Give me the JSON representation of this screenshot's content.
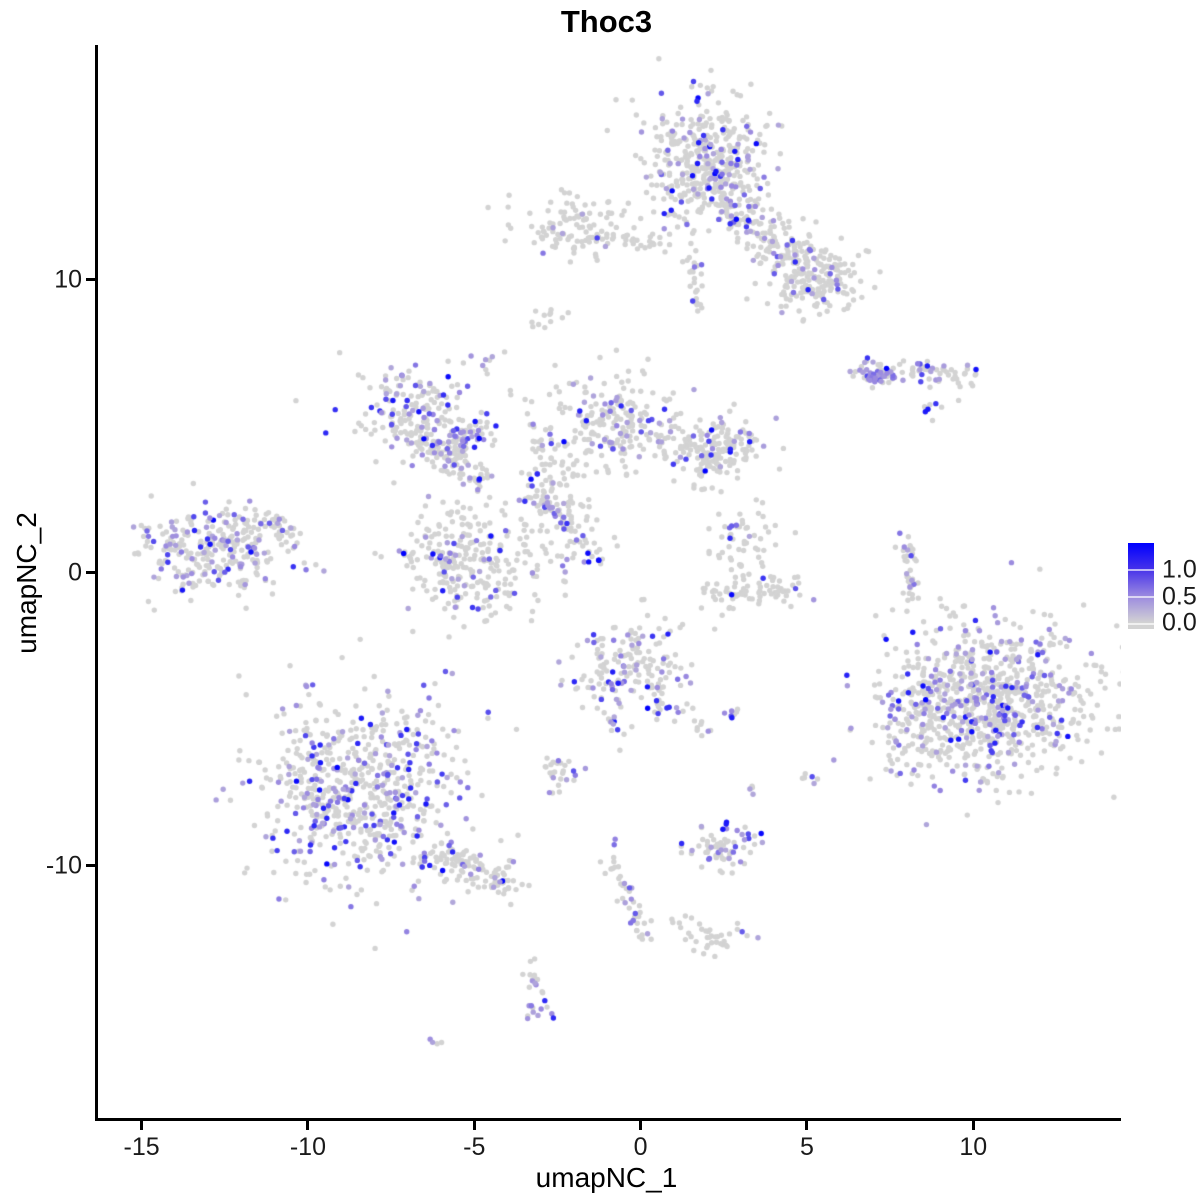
{
  "title": "Thoc3",
  "axes": {
    "x": {
      "label": "umapNC_1",
      "ticks": [
        -15,
        -10,
        -5,
        0,
        5,
        10
      ],
      "range": [
        -16.4,
        14.35
      ]
    },
    "y": {
      "label": "umapNC_2",
      "ticks": [
        -10,
        0,
        10
      ],
      "range": [
        -18.6,
        18.0
      ]
    }
  },
  "legend": {
    "labels": [
      "1.0",
      "0.5",
      "0.0"
    ],
    "tick_values": [
      1.0,
      0.5,
      0.0
    ],
    "bar_max_value": 1.5,
    "bar_min_value": -0.08,
    "low_color": "#d3d3d3",
    "mid_color": "#9b8ae0",
    "high_color": "#0000ff"
  },
  "chart_data": {
    "type": "scatter",
    "title": "Thoc3",
    "xlabel": "umapNC_1",
    "ylabel": "umapNC_2",
    "xlim": [
      -16.4,
      14.35
    ],
    "ylim": [
      -18.6,
      18.0
    ],
    "grid": false,
    "legend_position": "right",
    "point_radius": 2.7,
    "seed": 42,
    "color_low": "#d3d3d3",
    "color_mid": "#9b8ae0",
    "color_high": "#0000ff",
    "expression_default": {
      "emin": 0.3,
      "emax": 1.0,
      "skew": 1.8
    },
    "clusters": [
      {
        "name": "top-main",
        "shape": "blob",
        "cx": 1.8,
        "cy": 14.05,
        "sx": 0.9,
        "sy": 1.05,
        "n": 430,
        "frac": 0.2
      },
      {
        "name": "top-arm",
        "shape": "line",
        "x1": 2.3,
        "y1": 12.8,
        "x2": 5.6,
        "y2": 9.6,
        "w": 0.45,
        "n": 230,
        "frac": 0.16
      },
      {
        "name": "top-right-lobe",
        "shape": "blob",
        "cx": 5.4,
        "cy": 10.0,
        "sx": 0.75,
        "sy": 0.6,
        "n": 130,
        "frac": 0.14
      },
      {
        "name": "top-chain",
        "shape": "line",
        "x1": 1.3,
        "y1": 11.3,
        "x2": 1.7,
        "y2": 8.9,
        "w": 0.12,
        "n": 26,
        "frac": 0.15
      },
      {
        "name": "topleft-small",
        "shape": "blob",
        "cx": -2.0,
        "cy": 11.7,
        "sx": 0.85,
        "sy": 0.5,
        "n": 110,
        "frac": 0.07
      },
      {
        "name": "topleft-bridge",
        "shape": "line",
        "x1": -0.6,
        "y1": 11.4,
        "x2": 0.6,
        "y2": 11.2,
        "w": 0.2,
        "n": 24,
        "frac": 0.04
      },
      {
        "name": "tiny-comma",
        "shape": "blob",
        "cx": -2.85,
        "cy": 8.7,
        "sx": 0.28,
        "sy": 0.22,
        "n": 12,
        "frac": 0
      },
      {
        "name": "tiny-spot",
        "shape": "blob",
        "cx": -4.6,
        "cy": 7.4,
        "sx": 0.25,
        "sy": 0.3,
        "n": 9,
        "frac": 0.33
      },
      {
        "name": "midleft-top",
        "shape": "blob",
        "cx": -7.0,
        "cy": 5.6,
        "sx": 0.95,
        "sy": 0.75,
        "n": 170,
        "frac": 0.3
      },
      {
        "name": "midleft-branch",
        "shape": "line",
        "x1": -6.8,
        "y1": 4.7,
        "x2": -5.0,
        "y2": 3.2,
        "w": 0.3,
        "n": 90,
        "frac": 0.25
      },
      {
        "name": "mid-band",
        "shape": "line",
        "x1": -6.2,
        "y1": 4.0,
        "x2": -4.7,
        "y2": 4.9,
        "w": 0.28,
        "n": 70,
        "frac": 0.3
      },
      {
        "name": "round-blob",
        "shape": "blob",
        "cx": -5.3,
        "cy": 0.4,
        "sx": 1.05,
        "sy": 0.95,
        "n": 270,
        "frac": 0.18
      },
      {
        "name": "stem",
        "shape": "blob",
        "cx": -2.9,
        "cy": 3.0,
        "sx": 0.5,
        "sy": 1.0,
        "n": 90,
        "frac": 0.13
      },
      {
        "name": "fan",
        "shape": "blob",
        "cx": -0.9,
        "cy": 5.0,
        "sx": 0.95,
        "sy": 0.85,
        "n": 210,
        "frac": 0.14
      },
      {
        "name": "right-wing",
        "shape": "blob",
        "cx": 1.9,
        "cy": 4.3,
        "sx": 0.85,
        "sy": 0.55,
        "n": 150,
        "frac": 0.15
      },
      {
        "name": "wing-arm",
        "shape": "line",
        "x1": 1.6,
        "y1": 3.4,
        "x2": 3.1,
        "y2": 4.6,
        "w": 0.25,
        "n": 45,
        "frac": 0.22
      },
      {
        "name": "streak",
        "shape": "line",
        "x1": -3.0,
        "y1": 2.5,
        "x2": -1.3,
        "y2": 0.35,
        "w": 0.12,
        "n": 40,
        "frac": 0.45
      },
      {
        "name": "streak-end-dark",
        "shape": "blob",
        "cx": -1.35,
        "cy": 0.45,
        "sx": 0.06,
        "sy": 0.06,
        "n": 2,
        "frac": 1.0,
        "emin": 0.92,
        "emax": 1.0
      },
      {
        "name": "scatter-mid",
        "shape": "blob",
        "cx": -2.2,
        "cy": 1.3,
        "sx": 0.8,
        "sy": 0.8,
        "n": 40,
        "frac": 0.1
      },
      {
        "name": "far-left",
        "shape": "blob",
        "cx": -12.9,
        "cy": 0.9,
        "sx": 1.15,
        "sy": 0.8,
        "n": 290,
        "frac": 0.27
      },
      {
        "name": "farleft-tail",
        "shape": "line",
        "x1": -11.5,
        "y1": 1.7,
        "x2": -10.4,
        "y2": 1.4,
        "w": 0.25,
        "n": 30,
        "frac": 0.1
      },
      {
        "name": "sliver",
        "shape": "line",
        "x1": 7.95,
        "y1": 1.3,
        "x2": 8.05,
        "y2": -1.2,
        "w": 0.12,
        "n": 40,
        "frac": 0.18
      },
      {
        "name": "crescent-top",
        "shape": "blob",
        "cx": 2.9,
        "cy": 1.2,
        "sx": 0.5,
        "sy": 0.65,
        "n": 55,
        "frac": 0.1
      },
      {
        "name": "crescent-bottom",
        "shape": "line",
        "x1": 1.9,
        "y1": -0.8,
        "x2": 4.6,
        "y2": -0.5,
        "w": 0.3,
        "n": 75,
        "frac": 0.07
      },
      {
        "name": "center-bottom",
        "shape": "blob",
        "cx": -0.3,
        "cy": -3.3,
        "sx": 0.85,
        "sy": 0.75,
        "n": 170,
        "frac": 0.28
      },
      {
        "name": "cb-tail",
        "shape": "line",
        "x1": 0.4,
        "y1": -4.6,
        "x2": 1.9,
        "y2": -5.3,
        "w": 0.2,
        "n": 22,
        "frac": 0.1
      },
      {
        "name": "cb-chain",
        "shape": "line",
        "x1": -1.0,
        "y1": -4.7,
        "x2": -0.7,
        "y2": -6.0,
        "w": 0.1,
        "n": 10,
        "frac": 0.4
      },
      {
        "name": "cb-pair",
        "shape": "blob",
        "cx": 2.65,
        "cy": -4.8,
        "sx": 0.15,
        "sy": 0.12,
        "n": 7,
        "frac": 0.5
      },
      {
        "name": "right-big",
        "shape": "blob",
        "cx": 10.4,
        "cy": -4.4,
        "sx": 1.55,
        "sy": 1.35,
        "n": 820,
        "frac": 0.24
      },
      {
        "name": "right-fringe",
        "shape": "blob",
        "cx": 8.3,
        "cy": -5.1,
        "sx": 0.55,
        "sy": 1.1,
        "n": 90,
        "frac": 0.25
      },
      {
        "name": "botleft-main",
        "shape": "blob",
        "cx": -8.5,
        "cy": -7.4,
        "sx": 1.5,
        "sy": 1.55,
        "n": 680,
        "frac": 0.28
      },
      {
        "name": "botleft-tail",
        "shape": "line",
        "x1": -6.4,
        "y1": -9.6,
        "x2": -3.9,
        "y2": -10.6,
        "w": 0.3,
        "n": 120,
        "frac": 0.18
      },
      {
        "name": "small-island",
        "shape": "blob",
        "cx": -2.5,
        "cy": -6.8,
        "sx": 0.32,
        "sy": 0.3,
        "n": 28,
        "frac": 0.3
      },
      {
        "name": "bottom-cluster",
        "shape": "blob",
        "cx": 2.4,
        "cy": -9.4,
        "sx": 0.55,
        "sy": 0.35,
        "n": 65,
        "frac": 0.28
      },
      {
        "name": "bottom-dark-dot",
        "shape": "blob",
        "cx": 2.45,
        "cy": -8.5,
        "sx": 0.08,
        "sy": 0.1,
        "n": 3,
        "frac": 1.0,
        "emin": 0.9,
        "emax": 1.0
      },
      {
        "name": "strand",
        "shape": "line",
        "x1": -0.95,
        "y1": -9.8,
        "x2": 0.0,
        "y2": -12.4,
        "w": 0.15,
        "n": 40,
        "frac": 0.3
      },
      {
        "name": "strand-dot",
        "shape": "blob",
        "cx": -0.95,
        "cy": -9.15,
        "sx": 0.1,
        "sy": 0.1,
        "n": 2,
        "frac": 1.0,
        "emin": 0.5,
        "emax": 0.7
      },
      {
        "name": "q-blob",
        "shape": "blob",
        "cx": 2.1,
        "cy": -12.5,
        "sx": 0.5,
        "sy": 0.28,
        "n": 34,
        "frac": 0.12
      },
      {
        "name": "q-sparse",
        "shape": "blob",
        "cx": 0.75,
        "cy": -11.9,
        "sx": 0.3,
        "sy": 0.15,
        "n": 6,
        "frac": 0
      },
      {
        "name": "lower-left-strip",
        "shape": "line",
        "x1": -3.35,
        "y1": -13.5,
        "x2": -3.2,
        "y2": -15.2,
        "w": 0.2,
        "n": 26,
        "frac": 0.45
      },
      {
        "name": "lone-pair",
        "shape": "blob",
        "cx": -6.1,
        "cy": -16.0,
        "sx": 0.12,
        "sy": 0.08,
        "n": 4,
        "frac": 0.5
      },
      {
        "name": "dot-a",
        "shape": "blob",
        "cx": 5.0,
        "cy": -7.1,
        "sx": 0.15,
        "sy": 0.15,
        "n": 6,
        "frac": 0.35
      },
      {
        "name": "dot-b",
        "shape": "blob",
        "cx": 3.3,
        "cy": -7.5,
        "sx": 0.1,
        "sy": 0.1,
        "n": 4,
        "frac": 0.5
      },
      {
        "name": "right-mid-line",
        "shape": "line",
        "x1": 6.3,
        "y1": 6.85,
        "x2": 9.9,
        "y2": 6.75,
        "w": 0.22,
        "n": 80,
        "frac": 0.35
      },
      {
        "name": "right-mid-smear",
        "shape": "blob",
        "cx": 7.0,
        "cy": 6.7,
        "sx": 0.32,
        "sy": 0.16,
        "n": 30,
        "frac": 0.8,
        "emin": 0.35,
        "emax": 0.75
      },
      {
        "name": "right-mid-darkdot",
        "shape": "blob",
        "cx": 7.3,
        "cy": 6.95,
        "sx": 0.05,
        "sy": 0.05,
        "n": 1,
        "frac": 1.0,
        "emin": 0.95,
        "emax": 1.0
      },
      {
        "name": "right-mid-below",
        "shape": "blob",
        "cx": 8.75,
        "cy": 5.55,
        "sx": 0.25,
        "sy": 0.2,
        "n": 8,
        "frac": 0.3
      },
      {
        "name": "lone-gray-1",
        "shape": "blob",
        "cx": 1.8,
        "cy": 2.8,
        "sx": 0.08,
        "sy": 0.08,
        "n": 2,
        "frac": 0
      },
      {
        "name": "lone-gray-2",
        "shape": "blob",
        "cx": 0.0,
        "cy": -0.95,
        "sx": 0.08,
        "sy": 0.08,
        "n": 2,
        "frac": 0
      }
    ]
  }
}
